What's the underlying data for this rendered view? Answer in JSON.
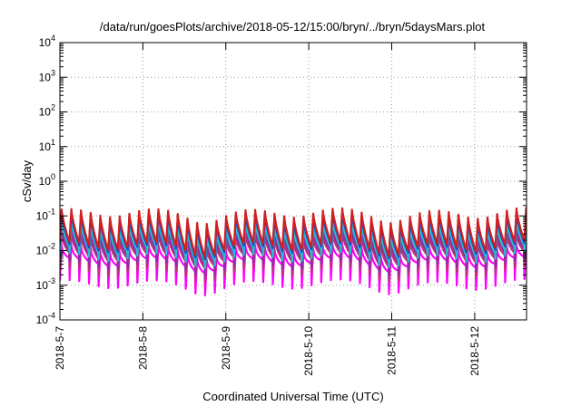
{
  "chart_data": {
    "type": "line",
    "title": "/data/run/goesPlots/archive/2018-05-12/15:00/bryn/../bryn/5daysMars.plot",
    "xlabel": "Coordinated Universal Time (UTC)",
    "ylabel": "cSv/day",
    "yscale": "log",
    "ylim": [
      0.0001,
      10000
    ],
    "xlim": [
      "2018-05-07",
      "2018-05-12 15:00"
    ],
    "grid": true,
    "legend": "none",
    "x_ticks": [
      "2018-5-7",
      "2018-5-8",
      "2018-5-9",
      "2018-5-10",
      "2018-5-11",
      "2018-5-12"
    ],
    "y_ticks": [
      {
        "base": "10",
        "exp": "4"
      },
      {
        "base": "10",
        "exp": "3"
      },
      {
        "base": "10",
        "exp": "2"
      },
      {
        "base": "10",
        "exp": "1"
      },
      {
        "base": "10",
        "exp": "0"
      },
      {
        "base": "10",
        "exp": "-1"
      },
      {
        "base": "10",
        "exp": "-2"
      },
      {
        "base": "10",
        "exp": "-3"
      },
      {
        "base": "10",
        "exp": "-4"
      }
    ],
    "oscillation": {
      "period_hours": 2.8,
      "peak": 0.09,
      "trough": 0.011
    },
    "series": [
      {
        "color": "#ff00ff",
        "scale": 0.4
      },
      {
        "color": "#c0307a",
        "scale": 0.55
      },
      {
        "color": "#8b2fa0",
        "scale": 0.65
      },
      {
        "color": "#3cb0a0",
        "scale": 0.9
      },
      {
        "color": "#20c0d0",
        "scale": 0.8
      },
      {
        "color": "#2244cc",
        "scale": 1.0
      },
      {
        "color": "#d02020",
        "scale": 1.12
      }
    ]
  }
}
